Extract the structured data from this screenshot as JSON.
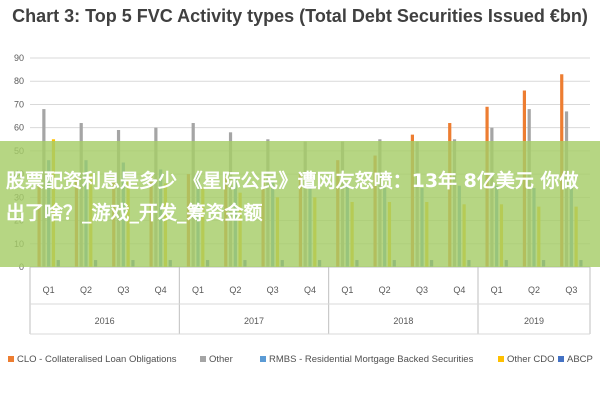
{
  "chart_data": {
    "type": "bar",
    "title": "Chart 3: Top 5 FVC Activity types (Total Debt Securities Issued €bn)",
    "ylim": [
      0,
      90
    ],
    "yticks": [
      0,
      10,
      20,
      30,
      40,
      50,
      60,
      70,
      80,
      90
    ],
    "grid": true,
    "legend_position": "bottom",
    "categories": [
      "Q1",
      "Q2",
      "Q3",
      "Q4",
      "Q1",
      "Q2",
      "Q3",
      "Q4",
      "Q1",
      "Q2",
      "Q3",
      "Q4",
      "Q1",
      "Q2",
      "Q3"
    ],
    "year_groups": [
      {
        "label": "2016",
        "count": 4
      },
      {
        "label": "2017",
        "count": 4
      },
      {
        "label": "2018",
        "count": 4
      },
      {
        "label": "2019",
        "count": 3
      }
    ],
    "series": [
      {
        "name": "CLO - Collateralised Loan Obligations",
        "color": "#ED7D31",
        "values": [
          35,
          38,
          37,
          40,
          40,
          39,
          38,
          40,
          46,
          48,
          57,
          62,
          69,
          76,
          83
        ]
      },
      {
        "name": "Other",
        "color": "#A5A5A5",
        "values": [
          68,
          62,
          59,
          60,
          62,
          58,
          55,
          54,
          54,
          55,
          54,
          55,
          60,
          68,
          67
        ]
      },
      {
        "name": "RMBS - Residential Mortgage Backed Securities",
        "color": "#5B9BD5",
        "values": [
          46,
          46,
          45,
          42,
          40,
          38,
          37,
          36,
          36,
          34,
          34,
          35,
          35,
          34,
          34
        ]
      },
      {
        "name": "Other CDO",
        "color": "#FFC000",
        "values": [
          55,
          40,
          38,
          36,
          34,
          32,
          30,
          30,
          28,
          28,
          28,
          27,
          27,
          26,
          26
        ]
      },
      {
        "name": "ABCP",
        "color": "#4472C4",
        "values": [
          3,
          3,
          3,
          3,
          3,
          3,
          3,
          3,
          3,
          3,
          3,
          3,
          3,
          3,
          3
        ]
      }
    ]
  },
  "overlay": {
    "text": "股票配资利息是多少 《星际公民》遭网友怒喷：13年 8亿美元 你做出了啥？_游戏_开发_筹资金额"
  },
  "colors": {
    "gridline": "#D9D9D9",
    "banner": "#A6CD68"
  }
}
